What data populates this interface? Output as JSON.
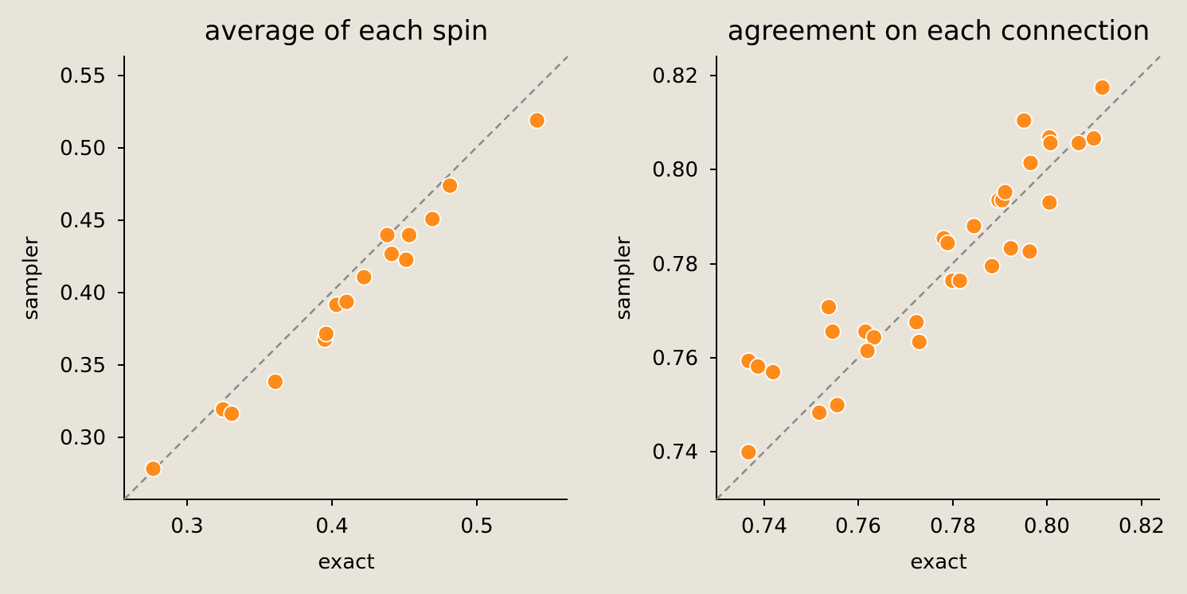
{
  "chart_data": [
    {
      "type": "scatter",
      "title": "average of each spin",
      "xlabel": "exact",
      "ylabel": "sampler",
      "xlim": [
        0.257,
        0.562
      ],
      "ylim": [
        0.257,
        0.562
      ],
      "xticks": [
        "0.3",
        "0.4",
        "0.5"
      ],
      "yticks": [
        "0.30",
        "0.35",
        "0.40",
        "0.45",
        "0.50",
        "0.55"
      ],
      "reference_line": "y = x",
      "color": "#ff8c1a",
      "x": [
        0.277,
        0.325,
        0.331,
        0.361,
        0.395,
        0.396,
        0.403,
        0.41,
        0.422,
        0.438,
        0.441,
        0.451,
        0.453,
        0.469,
        0.481,
        0.541
      ],
      "y": [
        0.278,
        0.319,
        0.316,
        0.338,
        0.367,
        0.371,
        0.391,
        0.393,
        0.41,
        0.439,
        0.426,
        0.422,
        0.439,
        0.45,
        0.473,
        0.518
      ]
    },
    {
      "type": "scatter",
      "title": "agreement on each connection",
      "xlabel": "exact",
      "ylabel": "sampler",
      "xlim": [
        0.73,
        0.824
      ],
      "ylim": [
        0.73,
        0.824
      ],
      "xticks": [
        "0.74",
        "0.76",
        "0.78",
        "0.80",
        "0.82"
      ],
      "yticks": [
        "0.74",
        "0.76",
        "0.78",
        "0.80",
        "0.82"
      ],
      "reference_line": "y = x",
      "color": "#ff8c1a",
      "x": [
        0.7368,
        0.7388,
        0.742,
        0.7368,
        0.7518,
        0.7556,
        0.7538,
        0.7546,
        0.7616,
        0.7634,
        0.762,
        0.7724,
        0.773,
        0.7782,
        0.779,
        0.78,
        0.7816,
        0.7846,
        0.7884,
        0.7898,
        0.7906,
        0.7912,
        0.7924,
        0.7952,
        0.7964,
        0.7966,
        0.8006,
        0.8006,
        0.8008,
        0.8068,
        0.81,
        0.8118
      ],
      "y": [
        0.7594,
        0.7582,
        0.757,
        0.74,
        0.7484,
        0.75,
        0.7708,
        0.7656,
        0.7656,
        0.7644,
        0.7615,
        0.7676,
        0.7634,
        0.7854,
        0.7844,
        0.7764,
        0.7764,
        0.788,
        0.7795,
        0.7935,
        0.7935,
        0.7952,
        0.7833,
        0.8104,
        0.7826,
        0.8014,
        0.793,
        0.8068,
        0.8056,
        0.8056,
        0.8066,
        0.8174
      ]
    }
  ]
}
